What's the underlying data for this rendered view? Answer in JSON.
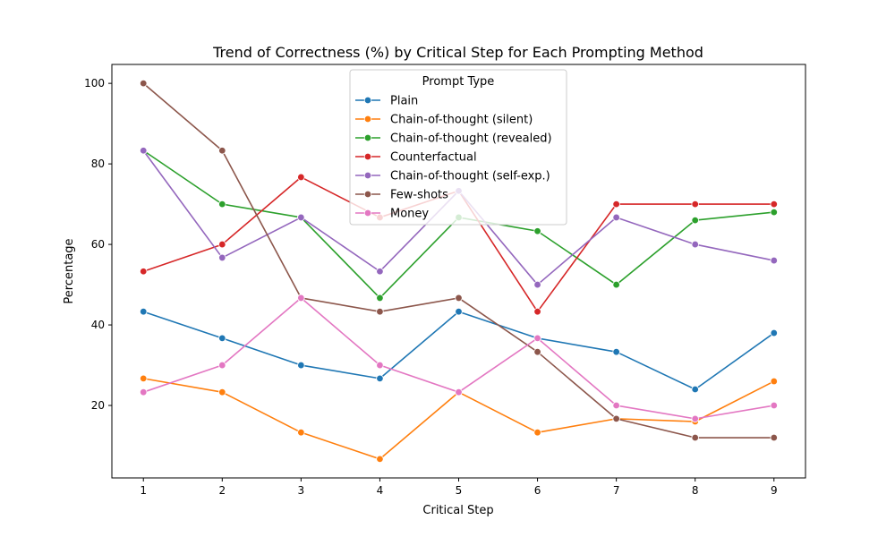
{
  "chart_data": {
    "type": "line",
    "title": "Trend of Correctness (%) by Critical Step for Each Prompting Method",
    "xlabel": "Critical Step",
    "ylabel": "Percentage",
    "x": [
      1,
      2,
      3,
      4,
      5,
      6,
      7,
      8,
      9
    ],
    "x_ticks": [
      "1",
      "2",
      "3",
      "4",
      "5",
      "6",
      "7",
      "8",
      "9"
    ],
    "y_ticks": [
      "20",
      "40",
      "60",
      "80",
      "100"
    ],
    "xlim": [
      0.6,
      9.4
    ],
    "ylim": [
      2,
      104.7
    ],
    "grid": false,
    "legend": {
      "title": "Prompt Type",
      "placement": "top-center"
    },
    "series": [
      {
        "name": "Plain",
        "color": "#1f77b4",
        "values": [
          43.3,
          36.7,
          30.0,
          26.7,
          43.3,
          36.7,
          33.3,
          24.0,
          38.0
        ]
      },
      {
        "name": "Chain-of-thought (silent)",
        "color": "#ff7f0e",
        "values": [
          26.7,
          23.3,
          13.3,
          6.7,
          23.3,
          13.3,
          16.7,
          16.0,
          26.0
        ]
      },
      {
        "name": "Chain-of-thought (revealed)",
        "color": "#2ca02c",
        "values": [
          83.3,
          70.0,
          66.7,
          46.7,
          66.7,
          63.3,
          50.0,
          66.0,
          68.0
        ]
      },
      {
        "name": "Counterfactual",
        "color": "#d62728",
        "values": [
          53.3,
          60.0,
          76.7,
          66.7,
          73.3,
          43.3,
          70.0,
          70.0,
          70.0
        ]
      },
      {
        "name": "Chain-of-thought (self-exp.)",
        "color": "#9467bd",
        "values": [
          83.3,
          56.7,
          66.7,
          53.3,
          73.3,
          50.0,
          66.7,
          60.0,
          56.0
        ]
      },
      {
        "name": "Few-shots",
        "color": "#8c564b",
        "values": [
          100.0,
          83.3,
          46.7,
          43.3,
          46.7,
          33.3,
          16.7,
          12.0,
          12.0
        ]
      },
      {
        "name": "Money",
        "color": "#e377c2",
        "values": [
          23.3,
          30.0,
          46.7,
          30.0,
          23.3,
          36.7,
          20.0,
          16.7,
          20.0
        ]
      }
    ]
  }
}
